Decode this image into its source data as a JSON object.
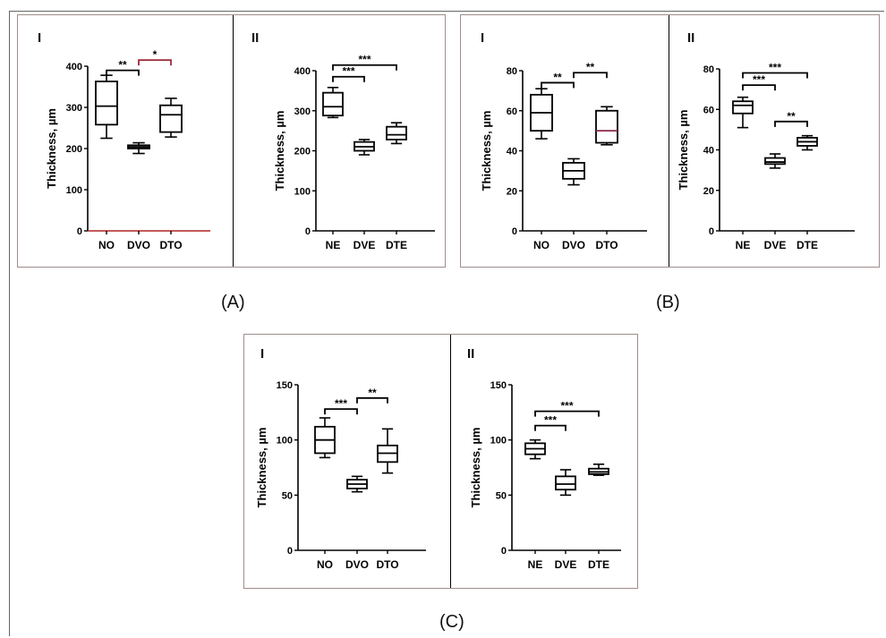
{
  "captions": [
    "(A)",
    "(B)",
    "(C)"
  ],
  "chart_data": [
    {
      "type": "box",
      "group": "A",
      "panel": "I",
      "title": "I",
      "ylabel": "Thickness, µm",
      "ylim": [
        0,
        400
      ],
      "yticks": [
        0,
        100,
        200,
        300,
        400
      ],
      "categories": [
        "NO",
        "DVO",
        "DTO"
      ],
      "boxes": [
        {
          "min": 225,
          "q1": 258,
          "median": 303,
          "q3": 363,
          "max": 378
        },
        {
          "min": 188,
          "q1": 200,
          "median": 204,
          "q3": 208,
          "max": 214
        },
        {
          "min": 228,
          "q1": 240,
          "median": 282,
          "q3": 305,
          "max": 322
        }
      ],
      "brackets": [
        {
          "from": 0,
          "to": 1,
          "y": 390,
          "label": "**"
        },
        {
          "from": 1,
          "to": 2,
          "y": 415,
          "label": "*"
        }
      ]
    },
    {
      "type": "box",
      "group": "A",
      "panel": "II",
      "title": "II",
      "ylabel": "Thickness, µm",
      "ylim": [
        0,
        400
      ],
      "yticks": [
        0,
        100,
        200,
        300,
        400
      ],
      "categories": [
        "NE",
        "DVE",
        "DTE"
      ],
      "boxes": [
        {
          "min": 283,
          "q1": 288,
          "median": 310,
          "q3": 345,
          "max": 358
        },
        {
          "min": 190,
          "q1": 200,
          "median": 210,
          "q3": 222,
          "max": 228
        },
        {
          "min": 218,
          "q1": 228,
          "median": 240,
          "q3": 260,
          "max": 270
        }
      ],
      "brackets": [
        {
          "from": 0,
          "to": 1,
          "y": 385,
          "label": "***"
        },
        {
          "from": 0,
          "to": 2,
          "y": 414,
          "label": "***"
        }
      ]
    },
    {
      "type": "box",
      "group": "B",
      "panel": "I",
      "title": "I",
      "ylabel": "Thickness, µm",
      "ylim": [
        0,
        80
      ],
      "yticks": [
        0,
        20,
        40,
        60,
        80
      ],
      "categories": [
        "NO",
        "DVO",
        "DTO"
      ],
      "boxes": [
        {
          "min": 46,
          "q1": 50,
          "median": 59,
          "q3": 68,
          "max": 71
        },
        {
          "min": 23,
          "q1": 26,
          "median": 30,
          "q3": 34,
          "max": 36
        },
        {
          "min": 43,
          "q1": 44,
          "median": 50,
          "q3": 60,
          "max": 62
        }
      ],
      "brackets": [
        {
          "from": 0,
          "to": 1,
          "y": 74,
          "label": "**"
        },
        {
          "from": 1,
          "to": 2,
          "y": 79,
          "label": "**"
        }
      ]
    },
    {
      "type": "box",
      "group": "B",
      "panel": "II",
      "title": "II",
      "ylabel": "Thickness, µm",
      "ylim": [
        0,
        80
      ],
      "yticks": [
        0,
        20,
        40,
        60,
        80
      ],
      "categories": [
        "NE",
        "DVE",
        "DTE"
      ],
      "boxes": [
        {
          "min": 51,
          "q1": 58,
          "median": 62,
          "q3": 64,
          "max": 66
        },
        {
          "min": 31,
          "q1": 33,
          "median": 34,
          "q3": 36,
          "max": 38
        },
        {
          "min": 40,
          "q1": 42,
          "median": 44,
          "q3": 46,
          "max": 47
        }
      ],
      "brackets": [
        {
          "from": 0,
          "to": 1,
          "y": 72,
          "label": "***"
        },
        {
          "from": 0,
          "to": 2,
          "y": 78,
          "label": "***"
        },
        {
          "from": 1,
          "to": 2,
          "y": 54,
          "label": "**"
        }
      ]
    },
    {
      "type": "box",
      "group": "C",
      "panel": "I",
      "title": "I",
      "ylabel": "Thickness, µm",
      "ylim": [
        0,
        150
      ],
      "yticks": [
        0,
        50,
        100,
        150
      ],
      "categories": [
        "NO",
        "DVO",
        "DTO"
      ],
      "boxes": [
        {
          "min": 84,
          "q1": 88,
          "median": 100,
          "q3": 112,
          "max": 120
        },
        {
          "min": 53,
          "q1": 56,
          "median": 60,
          "q3": 64,
          "max": 67
        },
        {
          "min": 70,
          "q1": 80,
          "median": 88,
          "q3": 95,
          "max": 110
        }
      ],
      "brackets": [
        {
          "from": 0,
          "to": 1,
          "y": 128,
          "label": "***"
        },
        {
          "from": 1,
          "to": 2,
          "y": 138,
          "label": "**"
        }
      ]
    },
    {
      "type": "box",
      "group": "C",
      "panel": "II",
      "title": "II",
      "ylabel": "Thickness, µm",
      "ylim": [
        0,
        150
      ],
      "yticks": [
        0,
        50,
        100,
        150
      ],
      "categories": [
        "NE",
        "DVE",
        "DTE"
      ],
      "boxes": [
        {
          "min": 83,
          "q1": 87,
          "median": 92,
          "q3": 97,
          "max": 100
        },
        {
          "min": 50,
          "q1": 55,
          "median": 60,
          "q3": 67,
          "max": 73
        },
        {
          "min": 68,
          "q1": 69,
          "median": 71,
          "q3": 74,
          "max": 78
        }
      ],
      "brackets": [
        {
          "from": 0,
          "to": 1,
          "y": 113,
          "label": "***"
        },
        {
          "from": 0,
          "to": 2,
          "y": 126,
          "label": "***"
        }
      ]
    }
  ]
}
